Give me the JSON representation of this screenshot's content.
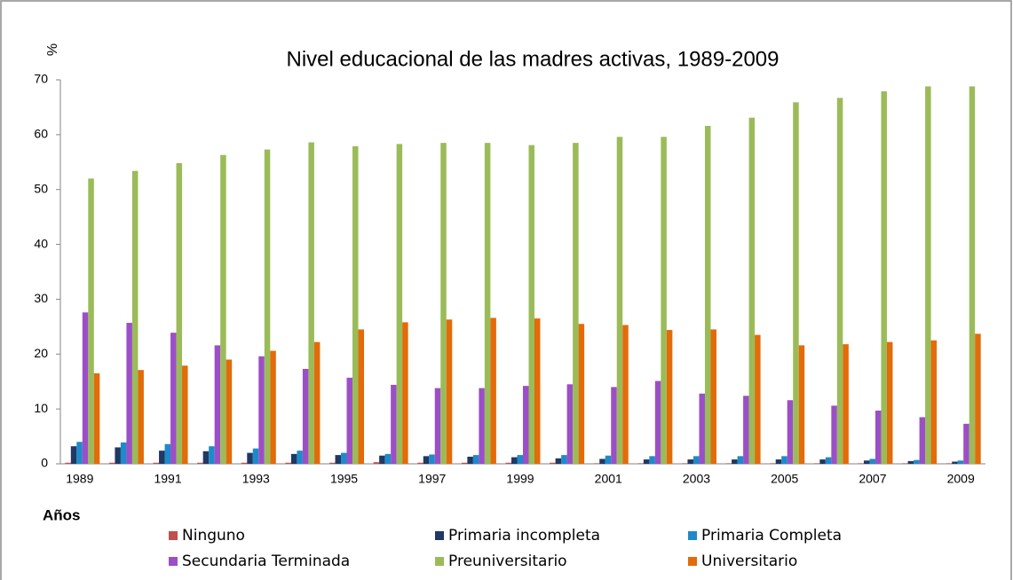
{
  "chart_data": {
    "type": "bar",
    "title": "Nivel educacional de las madres activas, 1989-2009",
    "y_label": "%",
    "x_label": "Años",
    "categories": [
      1989,
      null,
      1991,
      null,
      1993,
      null,
      1995,
      null,
      1997,
      null,
      1999,
      null,
      2001,
      null,
      2003,
      null,
      2005,
      null,
      2007,
      null,
      2009
    ],
    "series": [
      {
        "name": "Ninguno",
        "color": "#c0504d",
        "values": [
          0.2,
          0.2,
          0.2,
          0.2,
          0.2,
          0.2,
          0.2,
          0.3,
          0.2,
          0.2,
          0.2,
          0.2,
          0.1,
          0.1,
          0.1,
          0.1,
          0.1,
          0.1,
          0.1,
          0.1,
          0.1
        ]
      },
      {
        "name": "Primaria incompleta",
        "color": "#1f3864",
        "values": [
          3.2,
          3.0,
          2.4,
          2.3,
          2.0,
          1.8,
          1.6,
          1.5,
          1.4,
          1.3,
          1.2,
          1.0,
          0.9,
          0.8,
          0.8,
          0.8,
          0.8,
          0.8,
          0.6,
          0.5,
          0.4
        ]
      },
      {
        "name": "Primaria Completa",
        "color": "#1f8ac9",
        "values": [
          4.0,
          3.9,
          3.6,
          3.2,
          2.8,
          2.4,
          2.0,
          1.8,
          1.7,
          1.6,
          1.6,
          1.6,
          1.5,
          1.4,
          1.4,
          1.4,
          1.4,
          1.2,
          0.9,
          0.7,
          0.6
        ]
      },
      {
        "name": "Secundaria Terminada",
        "color": "#9b4fc7",
        "values": [
          27.6,
          25.7,
          23.9,
          21.6,
          19.6,
          17.3,
          15.7,
          14.4,
          13.8,
          13.8,
          14.2,
          14.5,
          14.0,
          15.1,
          12.8,
          12.4,
          11.6,
          10.6,
          9.7,
          8.5,
          7.3
        ]
      },
      {
        "name": "Preuniversitario",
        "color": "#9bbb59",
        "values": [
          52.0,
          53.4,
          54.8,
          56.3,
          57.3,
          58.6,
          57.9,
          58.3,
          58.5,
          58.5,
          58.1,
          58.5,
          59.6,
          59.6,
          61.6,
          63.1,
          65.9,
          66.7,
          67.9,
          68.8,
          68.8
        ]
      },
      {
        "name": "Universitario",
        "color": "#e26b0a",
        "values": [
          16.5,
          17.1,
          17.9,
          19.0,
          20.6,
          22.2,
          24.5,
          25.8,
          26.3,
          26.6,
          26.5,
          25.5,
          25.3,
          24.4,
          24.5,
          23.5,
          21.6,
          21.8,
          22.2,
          22.5,
          23.7
        ]
      }
    ],
    "ylim": [
      0,
      70
    ],
    "yticks": [
      0,
      10,
      20,
      30,
      40,
      50,
      60,
      70
    ],
    "grid": false
  }
}
